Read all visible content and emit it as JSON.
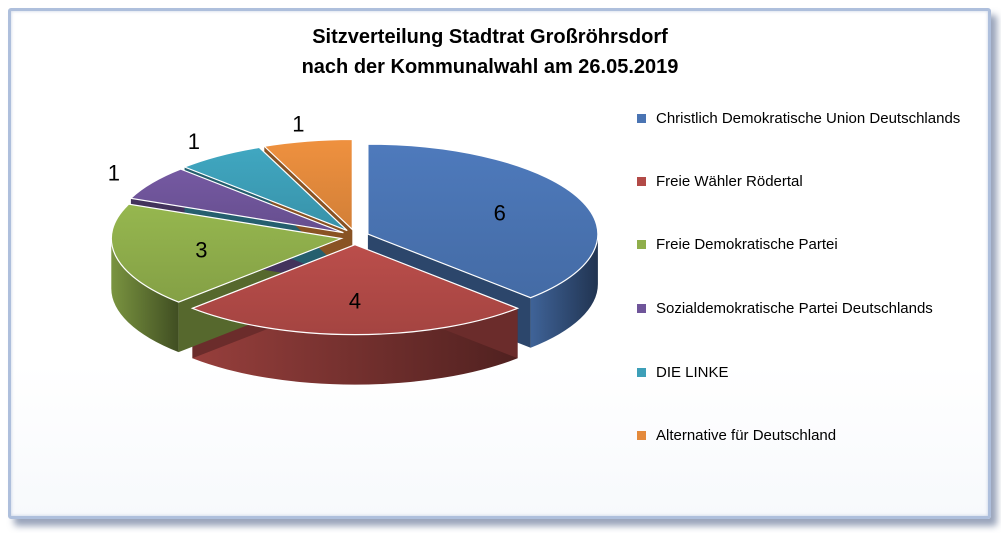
{
  "chart_data": {
    "type": "pie",
    "title_lines": [
      "Sitzverteilung Stadtrat Großröhrsdorf",
      "nach der Kommunalwahl am 26.05.2019"
    ],
    "variant": "3d-exploded",
    "legend_position": "right",
    "categories": [
      "Christlich Demokratische Union Deutschlands",
      "Freie Wähler Rödertal",
      "Freie Demokratische Partei",
      "Sozialdemokratische Partei Deutschlands",
      "DIE LINKE",
      "Alternative für Deutschland"
    ],
    "values": [
      6,
      4,
      3,
      1,
      1,
      1
    ],
    "value_labels": [
      "6",
      "4",
      "3",
      "1",
      "1",
      "1"
    ],
    "colors": [
      "#4a74b3",
      "#b24a47",
      "#8fae4b",
      "#6f559a",
      "#3d9fb8",
      "#e48a3c"
    ]
  }
}
